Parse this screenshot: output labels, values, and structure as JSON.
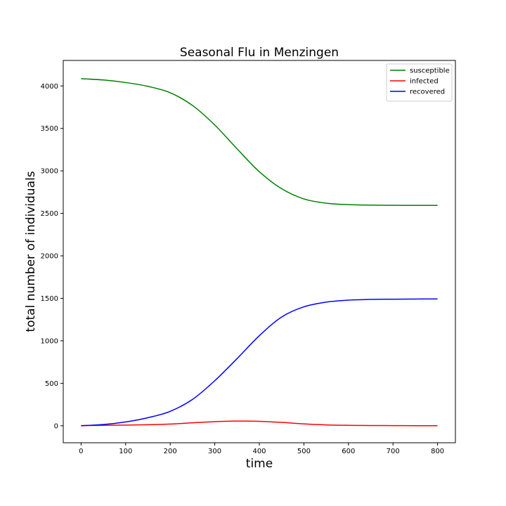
{
  "chart_data": {
    "type": "line",
    "title": "Seasonal Flu in Menzingen",
    "xlabel": "time",
    "ylabel": "total number of individuals",
    "xlim": [
      -40,
      840
    ],
    "ylim": [
      -200,
      4300
    ],
    "xticks": [
      0,
      100,
      200,
      300,
      400,
      500,
      600,
      700,
      800
    ],
    "yticks": [
      0,
      500,
      1000,
      1500,
      2000,
      2500,
      3000,
      3500,
      4000
    ],
    "grid": false,
    "legend_position": "top-right",
    "x": [
      0,
      50,
      100,
      150,
      200,
      250,
      300,
      350,
      400,
      450,
      500,
      550,
      600,
      650,
      700,
      750,
      800
    ],
    "series": [
      {
        "name": "susceptible",
        "color": "#008000",
        "values": [
          4085,
          4070,
          4040,
          3995,
          3920,
          3770,
          3540,
          3260,
          2990,
          2790,
          2670,
          2620,
          2603,
          2597,
          2595,
          2594,
          2594
        ]
      },
      {
        "name": "infected",
        "color": "#ff0000",
        "values": [
          2,
          5,
          8,
          12,
          20,
          35,
          48,
          55,
          52,
          40,
          22,
          10,
          5,
          3,
          2,
          1,
          1
        ]
      },
      {
        "name": "recovered",
        "color": "#0000ff",
        "values": [
          0,
          15,
          45,
          95,
          170,
          310,
          530,
          790,
          1060,
          1280,
          1400,
          1455,
          1478,
          1487,
          1490,
          1492,
          1493
        ]
      }
    ]
  }
}
